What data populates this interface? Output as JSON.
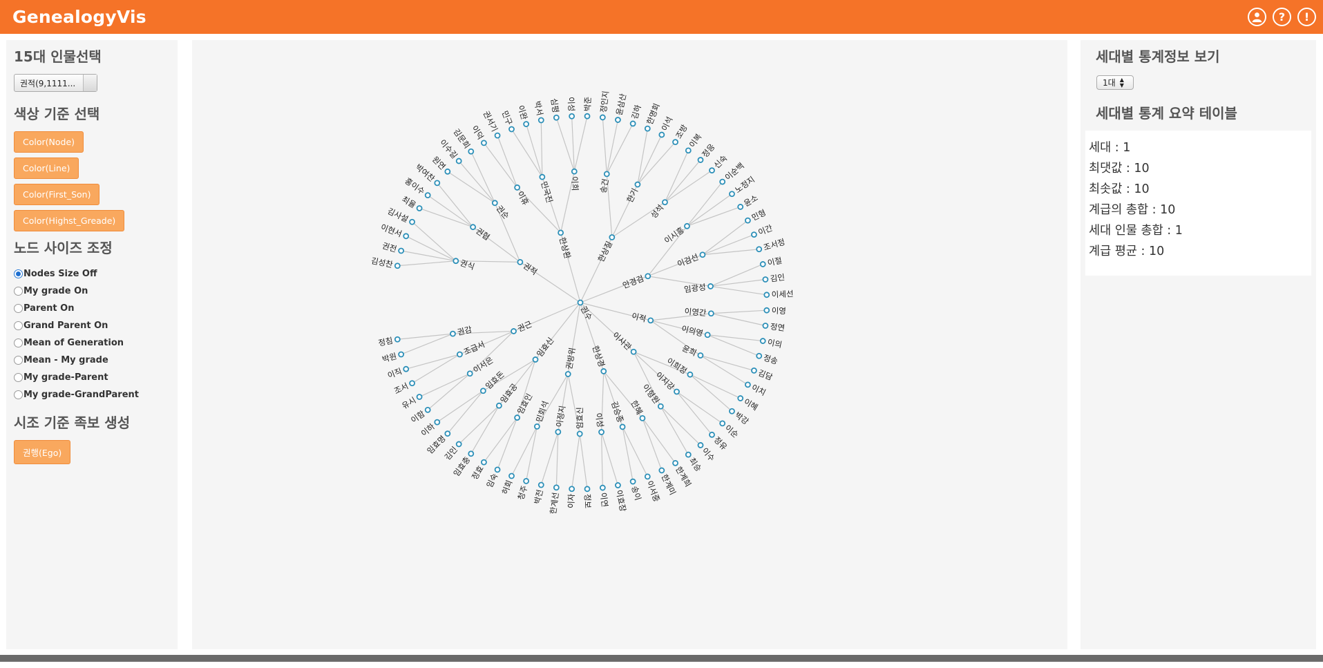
{
  "header": {
    "brand": "GenealogyVis",
    "icons": [
      "user-icon",
      "help-icon",
      "info-icon"
    ],
    "accent_color": "#f57328"
  },
  "left": {
    "person_select_title": "15대 인물선택",
    "person_select_value": "권적(9,1111...",
    "color_title": "색상 기준 선택",
    "color_buttons": [
      "Color(Node)",
      "Color(Line)",
      "Color(First_Son)",
      "Color(Highst_Greade)"
    ],
    "node_size_title": "노드 사이즈 조정",
    "radio_options": [
      "Nodes Size Off",
      "My grade On",
      "Parent On",
      "Grand Parent On",
      "Mean of Generation",
      "Mean - My grade",
      "My grade-Parent",
      "My grade-GrandParent"
    ],
    "radio_selected": "Nodes Size Off",
    "ego_title": "시조 기준 족보 생성",
    "ego_button": "권행(Ego)"
  },
  "right": {
    "stats_title": "세대별 통계정보 보기",
    "generation_value": "1대",
    "summary_title": "세대별 통계 요약 테이블",
    "stats": [
      "세대 : 1",
      "최댓값 : 10",
      "최솟값 : 10",
      "계급의 총합 : 10",
      "세대 인물 총합 : 1",
      "계급 평균 : 10"
    ]
  },
  "tree": {
    "root": "권수",
    "level1": [
      {
        "name": "권적",
        "children": [
          {
            "name": "권식",
            "children": [
              "김성찬",
              "권전",
              "이현서",
              "김사설"
            ]
          },
          {
            "name": "권협",
            "children": [
              "최율",
              "홍이수",
              "박여찬"
            ]
          },
          {
            "name": "권순",
            "children": [
              "원연",
              "이수길",
              "김문희"
            ]
          }
        ]
      },
      {
        "name": "한상환",
        "children": [
          {
            "name": "이휴",
            "children": [
              "이덕",
              "권서기"
            ]
          },
          {
            "name": "민국진",
            "children": [
              "민구",
              "이완",
              "박서"
            ]
          },
          {
            "name": "이희",
            "children": [
              "심평",
              "이성",
              "박준"
            ]
          }
        ]
      },
      {
        "name": "한상질",
        "children": [
          {
            "name": "송건",
            "children": [
              "정인지",
              "윤삼산",
              "김하"
            ]
          },
          {
            "name": "한기",
            "children": [
              "한명회",
              "이석",
              "조방"
            ]
          },
          {
            "name": "성석",
            "children": [
              "이복",
              "정응",
              "신숙"
            ]
          }
        ]
      },
      {
        "name": "안경검",
        "children": [
          {
            "name": "이시흥",
            "children": [
              "이순백",
              "노정지",
              "윤소"
            ]
          },
          {
            "name": "이검선",
            "children": [
              "민형",
              "이간",
              "조서정"
            ]
          },
          {
            "name": "임광성",
            "children": [
              "이절",
              "김인",
              "이세선"
            ]
          }
        ]
      },
      {
        "name": "이적",
        "children": [
          {
            "name": "이영간",
            "children": [
              "이영",
              "정연"
            ]
          },
          {
            "name": "이의영",
            "children": [
              "이의",
              "정송"
            ]
          },
          {
            "name": "윤희",
            "children": [
              "김담",
              "이치"
            ]
          }
        ]
      },
      {
        "name": "이사관",
        "children": [
          {
            "name": "이희정",
            "children": [
              "이혜",
              "박강"
            ]
          },
          {
            "name": "이지강",
            "children": [
              "이순",
              "정유"
            ]
          },
          {
            "name": "이형원",
            "children": [
              "이수",
              "최승"
            ]
          }
        ]
      },
      {
        "name": "한상경",
        "children": [
          {
            "name": "한혜",
            "children": [
              "한계희",
              "한계미"
            ]
          },
          {
            "name": "김승종",
            "children": [
              "이서중",
              "송이"
            ]
          },
          {
            "name": "이성",
            "children": [
              "이효장",
              "이연"
            ]
          }
        ]
      },
      {
        "name": "권방위",
        "children": [
          {
            "name": "임효신",
            "children": [
              "정보",
              "이자"
            ]
          },
          {
            "name": "이정지",
            "children": [
              "한계선",
              "박전"
            ]
          },
          {
            "name": "민회석",
            "children": [
              "청주",
              "허회"
            ]
          }
        ]
      },
      {
        "name": "임효신",
        "children": [
          {
            "name": "임효인",
            "children": [
              "임숙",
              "정효"
            ]
          },
          {
            "name": "임효공",
            "children": [
              "임효충",
              "김인"
            ]
          },
          {
            "name": "임효돈",
            "children": [
              "임효명",
              "이하"
            ]
          }
        ]
      },
      {
        "name": "권근",
        "children": [
          {
            "name": "이서은",
            "children": [
              "이함",
              "유시"
            ]
          },
          {
            "name": "조급서",
            "children": [
              "조서",
              "이직"
            ]
          },
          {
            "name": "권감",
            "children": [
              "박원",
              "정침"
            ]
          }
        ]
      }
    ]
  }
}
